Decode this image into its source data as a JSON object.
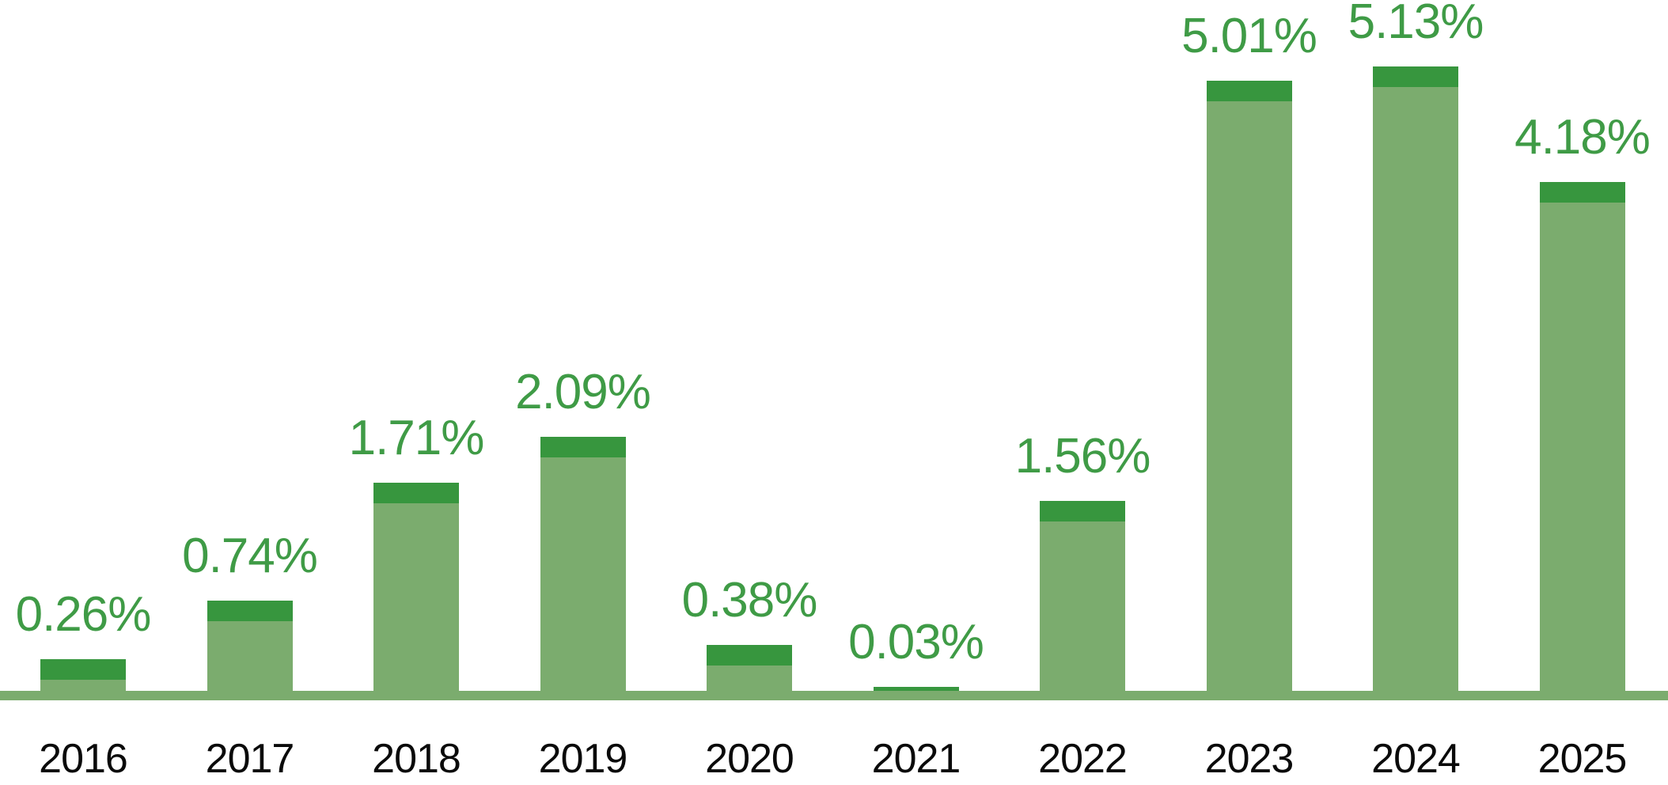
{
  "chart_data": {
    "type": "bar",
    "title": "",
    "xlabel": "",
    "ylabel": "",
    "categories": [
      "2016",
      "2017",
      "2018",
      "2019",
      "2020",
      "2021",
      "2022",
      "2023",
      "2024",
      "2025"
    ],
    "values": [
      0.26,
      0.74,
      1.71,
      2.09,
      0.38,
      0.03,
      1.56,
      5.01,
      5.13,
      4.18
    ],
    "value_labels": [
      "0.26%",
      "0.74%",
      "1.71%",
      "2.09%",
      "0.38%",
      "0.03%",
      "1.56%",
      "5.01%",
      "5.13%",
      "4.18%"
    ],
    "ylim": [
      0,
      5.67
    ],
    "grid": false,
    "legend": "none",
    "value_label_position": "above-bars",
    "colors": {
      "bar_body": "#7bac6e",
      "bar_cap": "#37963e",
      "value_label_text": "#3f9b46",
      "category_label_text": "#0a0a0a",
      "axis_line": "#7bac6e",
      "background": "#ffffff"
    }
  }
}
